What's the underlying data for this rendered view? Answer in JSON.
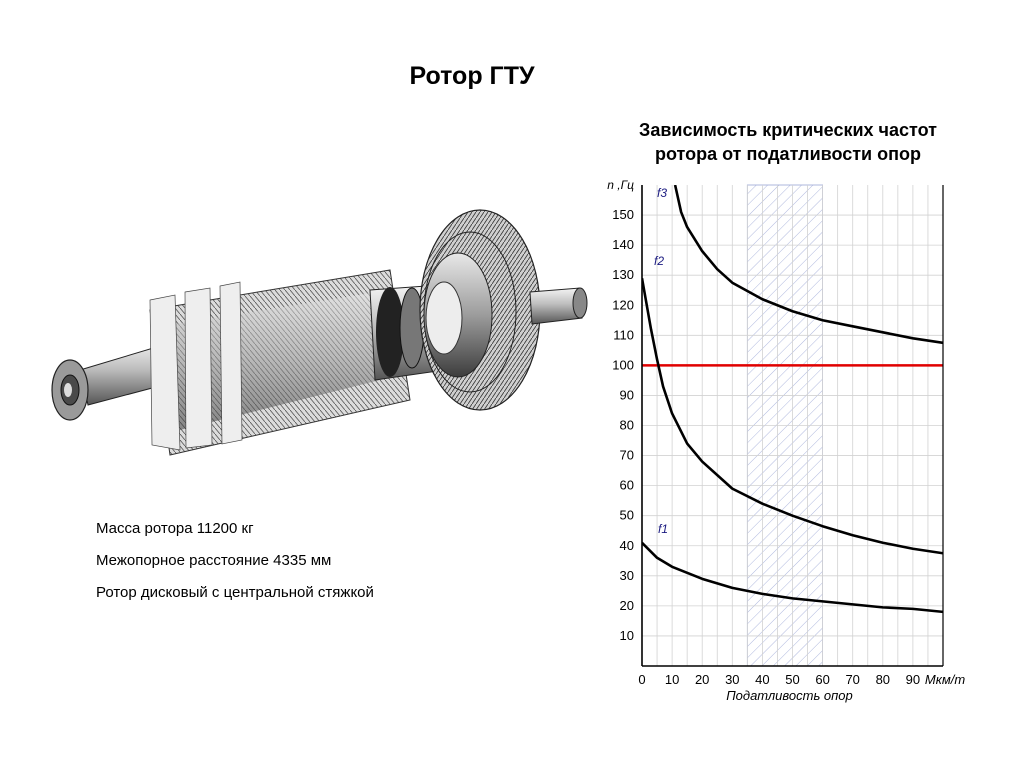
{
  "slide": {
    "title": "Ротор ГТУ",
    "info": [
      "Масса ротора 11200 кг",
      "Межопорное расстояние  4335 мм",
      "Ротор дисковый с центральной стяжкой"
    ]
  },
  "chart_data": {
    "type": "line",
    "title_lines": [
      "Зависимость критических частот",
      "ротора от податливости опор"
    ],
    "xlabel": "Податливость опор",
    "ylabel": "n ,Гц",
    "x_unit": "Мкм/т",
    "xlim": [
      0,
      100
    ],
    "ylim": [
      0,
      160
    ],
    "x_ticks": [
      0,
      10,
      20,
      30,
      40,
      50,
      60,
      70,
      80,
      90
    ],
    "y_ticks": [
      10,
      20,
      30,
      40,
      50,
      60,
      70,
      80,
      90,
      100,
      110,
      120,
      130,
      140,
      150
    ],
    "grid": true,
    "hatched_range": [
      35,
      60
    ],
    "reference_line": {
      "y": 100,
      "color": "#e00000"
    },
    "series": [
      {
        "name": "f1",
        "x": [
          0,
          5,
          10,
          15,
          20,
          30,
          40,
          50,
          60,
          70,
          80,
          90,
          100
        ],
        "y": [
          41,
          36,
          33,
          31,
          29,
          26,
          24,
          22.5,
          21.5,
          20.5,
          19.5,
          19,
          18
        ]
      },
      {
        "name": "f2",
        "x": [
          0,
          3,
          5,
          7,
          10,
          15,
          20,
          30,
          40,
          50,
          60,
          70,
          80,
          90,
          100
        ],
        "y": [
          129,
          112,
          102,
          93,
          84,
          74,
          68,
          59,
          54,
          50,
          46.5,
          43.5,
          41,
          39,
          37.5
        ]
      },
      {
        "name": "f3",
        "x": [
          11,
          13,
          15,
          20,
          25,
          30,
          40,
          50,
          60,
          70,
          80,
          90,
          100
        ],
        "y": [
          160,
          151,
          146,
          138,
          132,
          127.5,
          122,
          118,
          115,
          113,
          111,
          109,
          107.5
        ]
      }
    ]
  }
}
